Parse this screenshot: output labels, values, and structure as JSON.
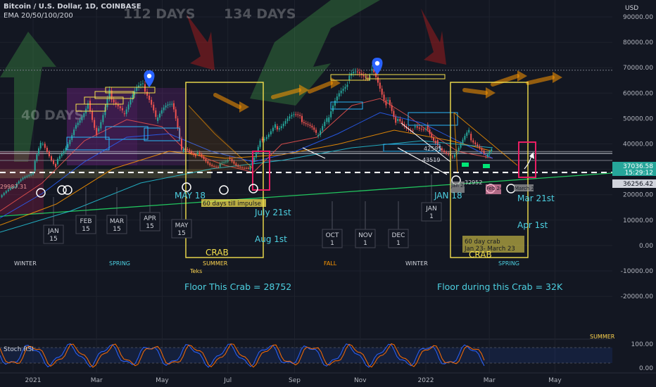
{
  "header": {
    "symbol": "Bitcoin / U.S. Dollar, 1D, COINBASE",
    "indicator": "EMA 20/50/100/200",
    "currency": "USD"
  },
  "annotations": {
    "days_112": "112 DAYS",
    "days_134": "134 DAYS",
    "days_40": "40 DAYS",
    "impulse_60": "60 days till impulse",
    "crab1": "CRAB",
    "crab2": "CRAB",
    "crab_60_line1": "60 day crab",
    "crab_60_line2": "Jan 23- March 23",
    "floor1": "Floor This Crab = 28752",
    "floor2": "Floor during this Crab = 32K",
    "may18": "MAY 18",
    "jan18": "JAN 18",
    "july21": "July 21st",
    "aug1": "Aug 1st",
    "mar21": "Mar 21st",
    "apr1": "Apr 1st",
    "teks": "Teks",
    "lbl_29987": "29987.31",
    "lbl_32952": "32952",
    "lbl_43519": "43519",
    "lbl_42595": "42595",
    "lbl_march21": "March 21",
    "lbl_jan24": "Jan 24",
    "lbl_feb24": "Feb 24"
  },
  "seasons": [
    {
      "name": "WINTER",
      "color": "#d1d4dc"
    },
    {
      "name": "SPRING",
      "color": "#4dd0e1"
    },
    {
      "name": "SUMMER",
      "color": "#ffd54f"
    },
    {
      "name": "FALL",
      "color": "#ff9800"
    },
    {
      "name": "WINTER",
      "color": "#d1d4dc"
    },
    {
      "name": "SPRING",
      "color": "#4dd0e1"
    },
    {
      "name": "SUMMER",
      "color": "#ffd54f"
    }
  ],
  "month_boxes": [
    {
      "month": "JAN",
      "day": "15"
    },
    {
      "month": "FEB",
      "day": "15"
    },
    {
      "month": "MAR",
      "day": "15"
    },
    {
      "month": "APR",
      "day": "15"
    },
    {
      "month": "MAY",
      "day": "15"
    },
    {
      "month": "OCT",
      "day": "1"
    },
    {
      "month": "NOV",
      "day": "1"
    },
    {
      "month": "DEC",
      "day": "1"
    },
    {
      "month": "JAN",
      "day": "1"
    }
  ],
  "price_labels": {
    "current": "37036.58",
    "countdown": "15:29:12",
    "level": "36256.42"
  },
  "rsi": {
    "title": "Stoch RSI",
    "ticks": [
      "100.00",
      "0.00"
    ]
  },
  "colors": {
    "background": "#131722",
    "candle_up": "#26a69a",
    "candle_down": "#ef5350",
    "crab_box": "#f4e04d",
    "pink_box": "#e91e63",
    "pin": "#2962ff",
    "support_line": "#22c55e",
    "floor_text": "#4dd0e1"
  },
  "chart_data": {
    "type": "line",
    "title": "Bitcoin / U.S. Dollar, 1D, COINBASE",
    "xlabel": "",
    "ylabel": "",
    "ylim": [
      -25000,
      95000
    ],
    "y_ticks": [
      90000,
      80000,
      70000,
      60000,
      50000,
      40000,
      30000,
      20000,
      10000,
      0,
      -10000,
      -20000
    ],
    "y_tick_labels": [
      "90000.00",
      "80000.00",
      "70000.00",
      "60000.00",
      "50000.00",
      "40000.00",
      "30000.00",
      "20000.00",
      "10000.00",
      "0.00",
      "-10000.00",
      "-20000.00"
    ],
    "x_tick_labels": [
      "2021",
      "Mar",
      "May",
      "Jul",
      "Sep",
      "Nov",
      "2022",
      "Mar",
      "May"
    ],
    "x_tick_dates": [
      "2021-01-01",
      "2021-03-01",
      "2021-05-01",
      "2021-07-01",
      "2021-09-01",
      "2021-11-01",
      "2022-01-01",
      "2022-03-01",
      "2022-05-01"
    ],
    "series": [
      {
        "name": "BTCUSD",
        "x": [
          "2020-12-01",
          "2020-12-15",
          "2021-01-01",
          "2021-01-08",
          "2021-01-22",
          "2021-02-08",
          "2021-02-21",
          "2021-03-01",
          "2021-03-13",
          "2021-03-25",
          "2021-04-13",
          "2021-04-25",
          "2021-05-10",
          "2021-05-19",
          "2021-06-01",
          "2021-06-22",
          "2021-07-01",
          "2021-07-20",
          "2021-07-31",
          "2021-08-14",
          "2021-09-06",
          "2021-09-21",
          "2021-10-01",
          "2021-10-20",
          "2021-11-10",
          "2021-11-25",
          "2021-12-04",
          "2021-12-20",
          "2022-01-01",
          "2022-01-10",
          "2022-01-24",
          "2022-02-10",
          "2022-02-24",
          "2022-03-03"
        ],
        "y": [
          19000,
          23000,
          29500,
          40000,
          32000,
          46000,
          57000,
          45000,
          61000,
          52000,
          63500,
          49000,
          56000,
          37000,
          36000,
          31000,
          34500,
          29800,
          42000,
          47000,
          51000,
          43000,
          48500,
          65000,
          68800,
          57000,
          49000,
          46500,
          47500,
          41500,
          35000,
          44000,
          35000,
          37036
        ]
      }
    ],
    "support_levels": [
      28752,
      32000
    ],
    "resistance_level": 69000
  }
}
